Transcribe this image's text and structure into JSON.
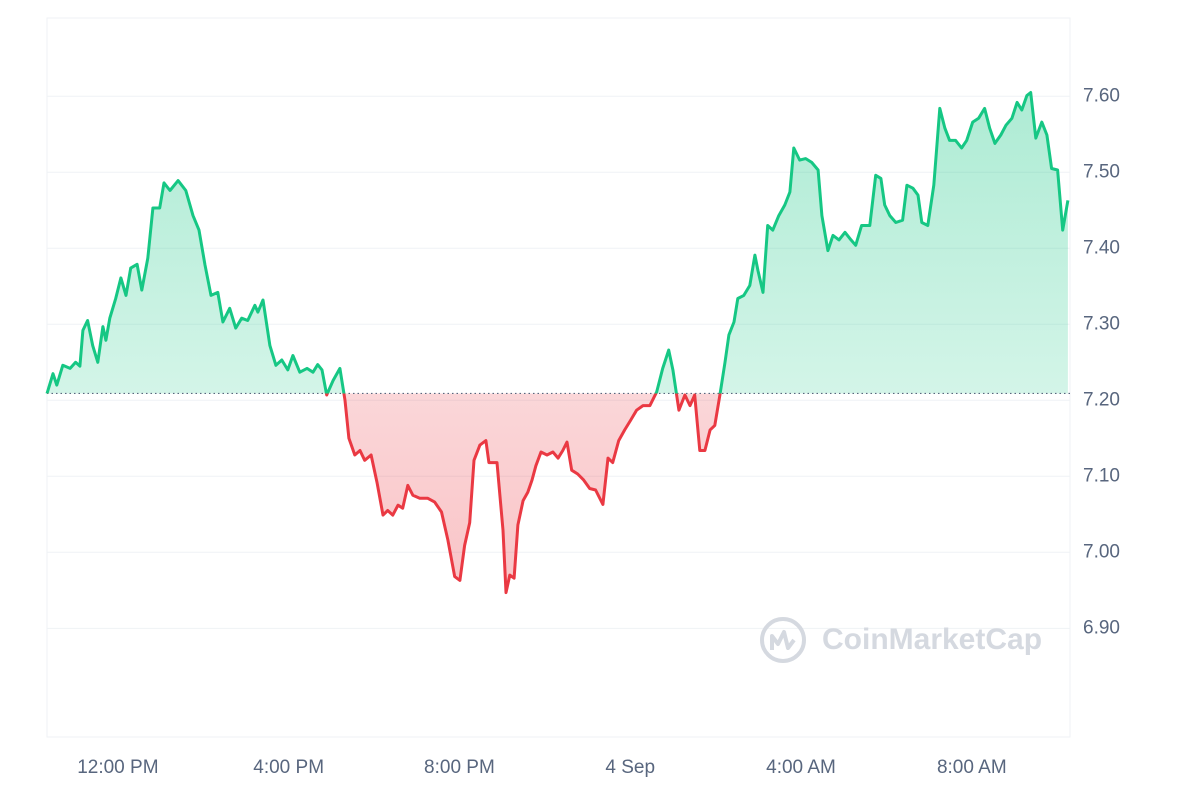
{
  "chart_data": {
    "type": "line",
    "x": [
      10.34,
      10.48,
      10.57,
      10.71,
      10.88,
      11.01,
      11.11,
      11.18,
      11.29,
      11.41,
      11.53,
      11.65,
      11.72,
      11.81,
      11.95,
      12.07,
      12.19,
      12.3,
      12.45,
      12.56,
      12.7,
      12.82,
      12.98,
      13.08,
      13.22,
      13.41,
      13.59,
      13.76,
      13.9,
      14.04,
      14.18,
      14.34,
      14.46,
      14.62,
      14.76,
      14.9,
      15.04,
      15.21,
      15.28,
      15.4,
      15.56,
      15.7,
      15.84,
      15.98,
      16.1,
      16.26,
      16.43,
      16.57,
      16.68,
      16.78,
      16.89,
      17.04,
      17.2,
      17.32,
      17.41,
      17.55,
      17.67,
      17.78,
      17.93,
      18.07,
      18.21,
      18.32,
      18.44,
      18.56,
      18.67,
      18.79,
      18.91,
      19.07,
      19.26,
      19.42,
      19.58,
      19.73,
      19.89,
      20.01,
      20.12,
      20.24,
      20.34,
      20.48,
      20.62,
      20.69,
      20.88,
      21.02,
      21.09,
      21.18,
      21.28,
      21.37,
      21.49,
      21.6,
      21.7,
      21.79,
      21.91,
      22.05,
      22.19,
      22.31,
      22.42,
      22.52,
      22.63,
      22.77,
      22.91,
      23.05,
      23.19,
      23.36,
      23.48,
      23.59,
      23.73,
      23.87,
      24.01,
      24.15,
      24.3,
      24.46,
      24.62,
      24.76,
      24.9,
      25.0,
      25.14,
      25.28,
      25.4,
      25.51,
      25.63,
      25.75,
      25.87,
      25.98,
      26.1,
      26.22,
      26.31,
      26.43,
      26.52,
      26.66,
      26.8,
      26.92,
      26.99,
      27.11,
      27.22,
      27.34,
      27.48,
      27.62,
      27.74,
      27.83,
      27.97,
      28.11,
      28.25,
      28.4,
      28.49,
      28.63,
      28.75,
      28.89,
      29.03,
      29.17,
      29.28,
      29.42,
      29.61,
      29.75,
      29.87,
      29.96,
      30.08,
      30.22,
      30.38,
      30.48,
      30.62,
      30.74,
      30.83,
      30.97,
      31.11,
      31.25,
      31.37,
      31.48,
      31.62,
      31.76,
      31.88,
      32.02,
      32.16,
      32.3,
      32.42,
      32.54,
      32.68,
      32.8,
      32.94,
      33.06,
      33.17,
      33.29,
      33.38,
      33.5,
      33.64,
      33.76,
      33.87,
      34.01,
      34.13,
      34.25
    ],
    "values": [
      7.209,
      7.235,
      7.22,
      7.246,
      7.242,
      7.25,
      7.245,
      7.292,
      7.305,
      7.272,
      7.25,
      7.297,
      7.279,
      7.308,
      7.334,
      7.361,
      7.338,
      7.374,
      7.379,
      7.345,
      7.387,
      7.453,
      7.453,
      7.486,
      7.476,
      7.489,
      7.476,
      7.443,
      7.424,
      7.378,
      7.338,
      7.342,
      7.303,
      7.321,
      7.295,
      7.308,
      7.305,
      7.325,
      7.316,
      7.332,
      7.272,
      7.246,
      7.253,
      7.24,
      7.259,
      7.237,
      7.242,
      7.237,
      7.247,
      7.24,
      7.207,
      7.226,
      7.242,
      7.2,
      7.15,
      7.128,
      7.134,
      7.121,
      7.128,
      7.092,
      7.049,
      7.055,
      7.049,
      7.062,
      7.058,
      7.088,
      7.075,
      7.071,
      7.071,
      7.066,
      7.053,
      7.016,
      6.968,
      6.963,
      7.009,
      7.039,
      7.121,
      7.141,
      7.147,
      7.118,
      7.118,
      7.029,
      6.947,
      6.97,
      6.966,
      7.036,
      7.068,
      7.079,
      7.095,
      7.114,
      7.132,
      7.128,
      7.132,
      7.124,
      7.134,
      7.145,
      7.108,
      7.103,
      7.095,
      7.084,
      7.082,
      7.063,
      7.124,
      7.118,
      7.147,
      7.161,
      7.174,
      7.187,
      7.193,
      7.193,
      7.211,
      7.242,
      7.266,
      7.24,
      7.187,
      7.207,
      7.193,
      7.207,
      7.134,
      7.134,
      7.161,
      7.167,
      7.207,
      7.25,
      7.286,
      7.303,
      7.334,
      7.338,
      7.351,
      7.391,
      7.371,
      7.342,
      7.43,
      7.424,
      7.443,
      7.457,
      7.474,
      7.532,
      7.516,
      7.518,
      7.513,
      7.503,
      7.443,
      7.397,
      7.417,
      7.411,
      7.421,
      7.411,
      7.404,
      7.43,
      7.43,
      7.496,
      7.492,
      7.457,
      7.443,
      7.434,
      7.437,
      7.483,
      7.479,
      7.47,
      7.434,
      7.43,
      7.483,
      7.584,
      7.558,
      7.542,
      7.542,
      7.532,
      7.542,
      7.566,
      7.571,
      7.584,
      7.558,
      7.538,
      7.549,
      7.562,
      7.571,
      7.592,
      7.582,
      7.601,
      7.605,
      7.545,
      7.566,
      7.549,
      7.505,
      7.503,
      7.424,
      7.463
    ],
    "baseline": 7.209,
    "up_color": "#16c784",
    "down_color": "#ea3943",
    "xlim": [
      10.34,
      34.3
    ],
    "xticks": [
      {
        "value": 12,
        "label": "12:00 PM"
      },
      {
        "value": 16,
        "label": "4:00 PM"
      },
      {
        "value": 20,
        "label": "8:00 PM"
      },
      {
        "value": 24,
        "label": "4 Sep"
      },
      {
        "value": 28,
        "label": "4:00 AM"
      },
      {
        "value": 32,
        "label": "8:00 AM"
      }
    ],
    "ylim": [
      6.757,
      7.703
    ],
    "yticks": [
      {
        "value": 6.9,
        "label": "6.90"
      },
      {
        "value": 7.0,
        "label": "7.00"
      },
      {
        "value": 7.1,
        "label": "7.10"
      },
      {
        "value": 7.2,
        "label": "7.20"
      },
      {
        "value": 7.3,
        "label": "7.30"
      },
      {
        "value": 7.4,
        "label": "7.40"
      },
      {
        "value": 7.5,
        "label": "7.50"
      },
      {
        "value": 7.6,
        "label": "7.60"
      }
    ],
    "grid": true,
    "watermark": "CoinMarketCap"
  }
}
